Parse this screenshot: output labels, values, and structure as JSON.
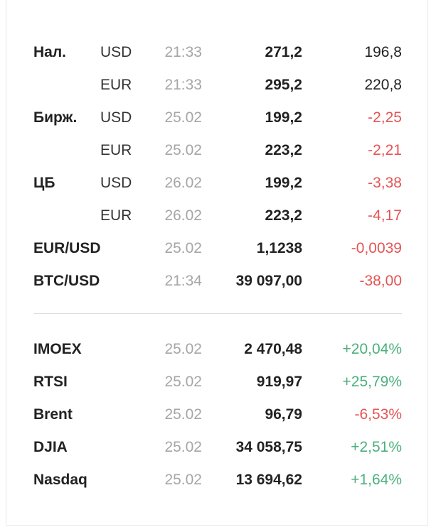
{
  "rates": [
    {
      "label": "Нал.",
      "currency": "USD",
      "time": "21:33",
      "value": "271,2",
      "change": "196,8",
      "trend": "neutral"
    },
    {
      "label": "",
      "currency": "EUR",
      "time": "21:33",
      "value": "295,2",
      "change": "220,8",
      "trend": "neutral"
    },
    {
      "label": "Бирж.",
      "currency": "USD",
      "time": "25.02",
      "value": "199,2",
      "change": "-2,25",
      "trend": "neg"
    },
    {
      "label": "",
      "currency": "EUR",
      "time": "25.02",
      "value": "223,2",
      "change": "-2,21",
      "trend": "neg"
    },
    {
      "label": "ЦБ",
      "currency": "USD",
      "time": "26.02",
      "value": "199,2",
      "change": "-3,38",
      "trend": "neg"
    },
    {
      "label": "",
      "currency": "EUR",
      "time": "26.02",
      "value": "223,2",
      "change": "-4,17",
      "trend": "neg"
    },
    {
      "label": "EUR/USD",
      "currency": "",
      "time": "25.02",
      "value": "1,1238",
      "change": "-0,0039",
      "trend": "neg"
    },
    {
      "label": "BTC/USD",
      "currency": "",
      "time": "21:34",
      "value": "39 097,00",
      "change": "-38,00",
      "trend": "neg"
    }
  ],
  "indices": [
    {
      "label": "IMOEX",
      "time": "25.02",
      "value": "2 470,48",
      "change": "+20,04%",
      "trend": "pos"
    },
    {
      "label": "RTSI",
      "time": "25.02",
      "value": "919,97",
      "change": "+25,79%",
      "trend": "pos"
    },
    {
      "label": "Brent",
      "time": "25.02",
      "value": "96,79",
      "change": "-6,53%",
      "trend": "neg"
    },
    {
      "label": "DJIA",
      "time": "25.02",
      "value": "34 058,75",
      "change": "+2,51%",
      "trend": "pos"
    },
    {
      "label": "Nasdaq",
      "time": "25.02",
      "value": "13 694,62",
      "change": "+1,64%",
      "trend": "pos"
    }
  ],
  "colors": {
    "positive": "#4caf7d",
    "negative": "#e55454",
    "time": "#a6a6a6",
    "text": "#222222"
  }
}
